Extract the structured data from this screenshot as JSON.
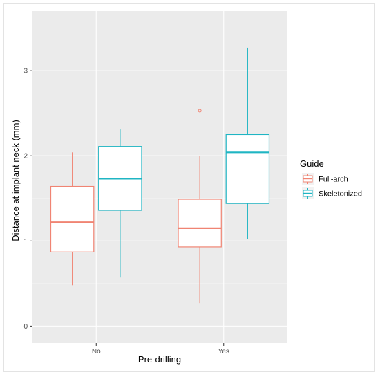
{
  "chart_data": {
    "type": "box",
    "xlabel": "Pre-drilling",
    "ylabel": "Distance at implant neck (mm)",
    "categories": [
      "No",
      "Yes"
    ],
    "ylim": [
      -0.2,
      3.7
    ],
    "yticks": [
      0,
      1,
      2,
      3
    ],
    "grid": true,
    "legend": {
      "title": "Guide",
      "placement": "right",
      "entries": [
        "Full-arch",
        "Skeletonized"
      ]
    },
    "series": [
      {
        "name": "Full-arch",
        "color": "#f08473",
        "boxes": [
          {
            "category": "No",
            "min": 0.48,
            "q1": 0.87,
            "median": 1.22,
            "q3": 1.64,
            "max": 2.04,
            "outliers": []
          },
          {
            "category": "Yes",
            "min": 0.27,
            "q1": 0.93,
            "median": 1.15,
            "q3": 1.49,
            "max": 2.0,
            "outliers": [
              2.53
            ]
          }
        ]
      },
      {
        "name": "Skeletonized",
        "color": "#1fb5c3",
        "boxes": [
          {
            "category": "No",
            "min": 0.57,
            "q1": 1.36,
            "median": 1.73,
            "q3": 2.11,
            "max": 2.31,
            "outliers": []
          },
          {
            "category": "Yes",
            "min": 1.02,
            "q1": 1.44,
            "median": 2.04,
            "q3": 2.25,
            "max": 3.27,
            "outliers": []
          }
        ]
      }
    ]
  }
}
